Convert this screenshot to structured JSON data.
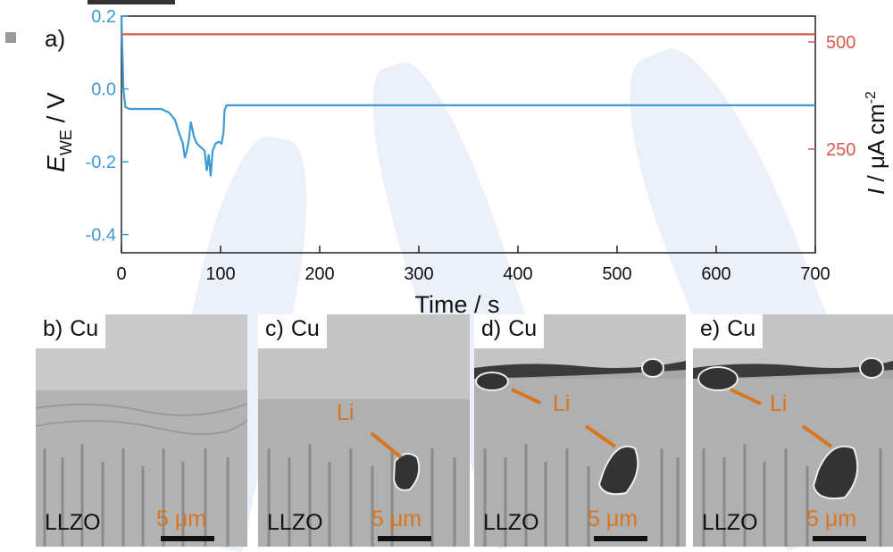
{
  "chart_data": {
    "type": "line",
    "panel_label": "a)",
    "xlabel": "Time / s",
    "xlim": [
      0,
      700
    ],
    "x_ticks": [
      "0",
      "100",
      "200",
      "300",
      "400",
      "500",
      "600",
      "700"
    ],
    "ylabel_left": {
      "main": "E",
      "sub": "WE",
      "rest": " / V"
    },
    "ylim_left": [
      -0.45,
      0.2
    ],
    "y_ticks_left": [
      "0.2",
      "0.0",
      "-0.2",
      "-0.4"
    ],
    "ylabel_right": {
      "main": "I",
      "rest": " / μA cm",
      "sup": "-2"
    },
    "y_ticks_right": [
      "500",
      "250"
    ],
    "series": [
      {
        "axis": "left",
        "color": "#3c9bd1",
        "points": [
          [
            0,
            0.2
          ],
          [
            2,
            0.0
          ],
          [
            4,
            -0.05
          ],
          [
            8,
            -0.055
          ],
          [
            20,
            -0.055
          ],
          [
            40,
            -0.055
          ],
          [
            48,
            -0.065
          ],
          [
            54,
            -0.085
          ],
          [
            58,
            -0.12
          ],
          [
            62,
            -0.15
          ],
          [
            64,
            -0.19
          ],
          [
            66,
            -0.17
          ],
          [
            68,
            -0.14
          ],
          [
            70,
            -0.09
          ],
          [
            73,
            -0.13
          ],
          [
            76,
            -0.15
          ],
          [
            80,
            -0.16
          ],
          [
            84,
            -0.17
          ],
          [
            86,
            -0.225
          ],
          [
            88,
            -0.18
          ],
          [
            90,
            -0.24
          ],
          [
            92,
            -0.17
          ],
          [
            95,
            -0.15
          ],
          [
            98,
            -0.145
          ],
          [
            101,
            -0.15
          ],
          [
            103,
            -0.12
          ],
          [
            104,
            -0.06
          ],
          [
            106,
            -0.045
          ],
          [
            120,
            -0.045
          ],
          [
            200,
            -0.045
          ],
          [
            400,
            -0.045
          ],
          [
            700,
            -0.045
          ]
        ]
      },
      {
        "axis": "right",
        "color": "#d9574a",
        "points": [
          [
            0,
            0.15
          ],
          [
            700,
            0.15
          ]
        ]
      }
    ]
  },
  "sem_panels": [
    {
      "letter": "b)",
      "top_label": "Cu",
      "bottom_label": "LLZO",
      "scale": "5 μm",
      "li_label": ""
    },
    {
      "letter": "c)",
      "top_label": "Cu",
      "bottom_label": "LLZO",
      "scale": "5 μm",
      "li_label": "Li"
    },
    {
      "letter": "d)",
      "top_label": "Cu",
      "bottom_label": "LLZO",
      "scale": "5 μm",
      "li_label": "Li"
    },
    {
      "letter": "e)",
      "top_label": "Cu",
      "bottom_label": "LLZO",
      "scale": "5 μm",
      "li_label": "Li"
    }
  ]
}
